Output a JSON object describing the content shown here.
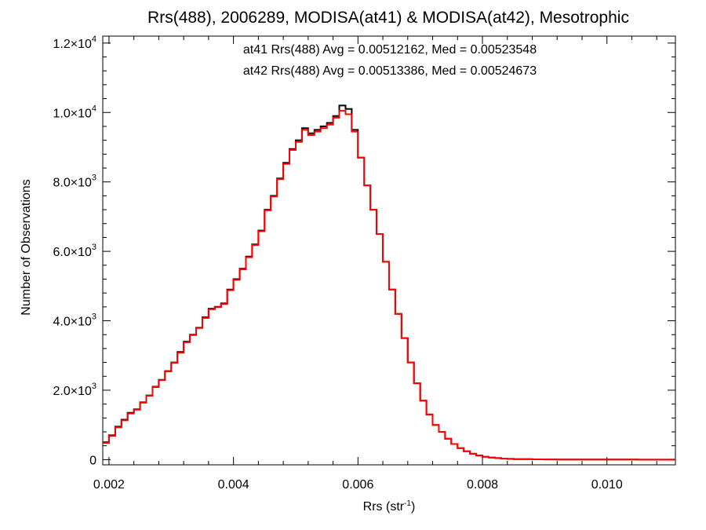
{
  "chart_data": {
    "type": "line",
    "title": "Rrs(488), 2006289, MODISA(at41) & MODISA(at42), Mesotrophic",
    "xlabel": "Rrs (str",
    "xlabel_sup": "-1",
    "xlabel_end": ")",
    "ylabel": "Number of Observations",
    "xlim": [
      0.0019,
      0.0111
    ],
    "ylim": [
      -150,
      12200
    ],
    "x_ticks": [
      {
        "value": 0.002,
        "label": "0.002"
      },
      {
        "value": 0.004,
        "label": "0.004"
      },
      {
        "value": 0.006,
        "label": "0.006"
      },
      {
        "value": 0.008,
        "label": "0.008"
      },
      {
        "value": 0.01,
        "label": "0.010"
      }
    ],
    "y_ticks": [
      {
        "value": 0,
        "mant": "0",
        "exp": ""
      },
      {
        "value": 2000,
        "mant": "2.0×10",
        "exp": "3"
      },
      {
        "value": 4000,
        "mant": "4.0×10",
        "exp": "3"
      },
      {
        "value": 6000,
        "mant": "6.0×10",
        "exp": "3"
      },
      {
        "value": 8000,
        "mant": "8.0×10",
        "exp": "3"
      },
      {
        "value": 10000,
        "mant": "1.0×10",
        "exp": "4"
      },
      {
        "value": 12000,
        "mant": "1.2×10",
        "exp": "4"
      }
    ],
    "grid": false,
    "step": true,
    "annotations": [
      {
        "text": "at41 Rrs(488) Avg = 0.00512162, Med = 0.00523548",
        "color": "#000000"
      },
      {
        "text": "at42 Rrs(488) Avg = 0.00513386, Med = 0.00524673",
        "color": "#ff0000"
      }
    ],
    "series": [
      {
        "color": "#000000",
        "x": [
          0.0019,
          0.002,
          0.0021,
          0.0022,
          0.0023,
          0.0024,
          0.0025,
          0.0026,
          0.0027,
          0.0028,
          0.0029,
          0.003,
          0.0031,
          0.0032,
          0.0033,
          0.0034,
          0.0035,
          0.0036,
          0.0037,
          0.0038,
          0.0039,
          0.004,
          0.0041,
          0.0042,
          0.0043,
          0.0044,
          0.0045,
          0.0046,
          0.0047,
          0.0048,
          0.0049,
          0.005,
          0.0051,
          0.0052,
          0.0053,
          0.0054,
          0.0055,
          0.0056,
          0.0057,
          0.0058,
          0.0059,
          0.006,
          0.0061,
          0.0062,
          0.0063,
          0.0064,
          0.0065,
          0.0066,
          0.0067,
          0.0068,
          0.0069,
          0.007,
          0.0071,
          0.0072,
          0.0073,
          0.0074,
          0.0075,
          0.0076,
          0.0077,
          0.0078,
          0.0079,
          0.008,
          0.0081,
          0.0082,
          0.0083,
          0.0084,
          0.0085,
          0.0086,
          0.0088,
          0.009,
          0.0092,
          0.0095,
          0.01,
          0.0105,
          0.0111
        ],
        "y": [
          500,
          700,
          950,
          1150,
          1350,
          1450,
          1650,
          1850,
          2100,
          2300,
          2550,
          2800,
          3100,
          3400,
          3600,
          3800,
          4100,
          4350,
          4400,
          4500,
          4900,
          5200,
          5500,
          5850,
          6200,
          6600,
          7200,
          7600,
          8100,
          8550,
          8950,
          9200,
          9550,
          9400,
          9500,
          9600,
          9700,
          9900,
          10200,
          10100,
          9500,
          8700,
          7900,
          7200,
          6500,
          5700,
          4900,
          4200,
          3500,
          2800,
          2200,
          1700,
          1300,
          1000,
          800,
          600,
          450,
          330,
          240,
          170,
          120,
          80,
          60,
          45,
          32,
          22,
          16,
          12,
          8,
          5,
          3,
          2,
          1,
          0,
          0
        ]
      },
      {
        "color": "#ff0000",
        "x": [
          0.0019,
          0.002,
          0.0021,
          0.0022,
          0.0023,
          0.0024,
          0.0025,
          0.0026,
          0.0027,
          0.0028,
          0.0029,
          0.003,
          0.0031,
          0.0032,
          0.0033,
          0.0034,
          0.0035,
          0.0036,
          0.0037,
          0.0038,
          0.0039,
          0.004,
          0.0041,
          0.0042,
          0.0043,
          0.0044,
          0.0045,
          0.0046,
          0.0047,
          0.0048,
          0.0049,
          0.005,
          0.0051,
          0.0052,
          0.0053,
          0.0054,
          0.0055,
          0.0056,
          0.0057,
          0.0058,
          0.0059,
          0.006,
          0.0061,
          0.0062,
          0.0063,
          0.0064,
          0.0065,
          0.0066,
          0.0067,
          0.0068,
          0.0069,
          0.007,
          0.0071,
          0.0072,
          0.0073,
          0.0074,
          0.0075,
          0.0076,
          0.0077,
          0.0078,
          0.0079,
          0.008,
          0.0081,
          0.0082,
          0.0083,
          0.0084,
          0.0085,
          0.0086,
          0.0088,
          0.009,
          0.0092,
          0.0095,
          0.01,
          0.0105,
          0.0111
        ],
        "y": [
          480,
          680,
          930,
          1130,
          1330,
          1440,
          1640,
          1840,
          2090,
          2290,
          2540,
          2790,
          3080,
          3380,
          3590,
          3790,
          4080,
          4330,
          4390,
          4480,
          4880,
          5180,
          5480,
          5830,
          6180,
          6580,
          7180,
          7580,
          8080,
          8520,
          8920,
          9150,
          9500,
          9350,
          9450,
          9550,
          9650,
          9850,
          10050,
          9950,
          9450,
          8700,
          7900,
          7200,
          6500,
          5700,
          4900,
          4200,
          3500,
          2800,
          2200,
          1700,
          1300,
          1000,
          800,
          600,
          450,
          330,
          240,
          170,
          120,
          80,
          60,
          45,
          32,
          22,
          16,
          12,
          8,
          5,
          3,
          2,
          1,
          0,
          0
        ]
      }
    ]
  }
}
